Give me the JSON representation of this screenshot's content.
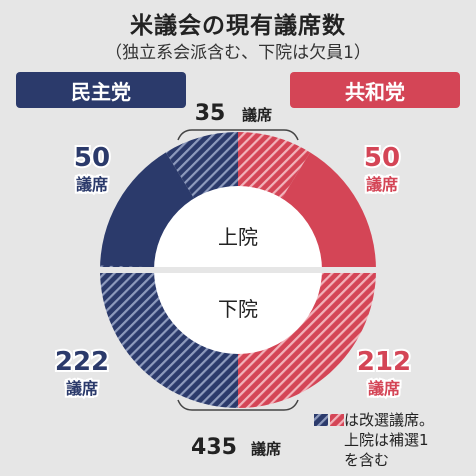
{
  "title": "米議会の現有議席数",
  "subtitle": "（独立系会派含む、下院は欠員1）",
  "parties": {
    "dem": "民主党",
    "rep": "共和党"
  },
  "colors": {
    "dem": "#2b3a6b",
    "rep": "#d44556",
    "background": "#e6e6e6"
  },
  "chart_data": {
    "type": "pie",
    "charts": [
      {
        "name": "上院",
        "total": 100,
        "dem": 50,
        "rep": 50,
        "up_for_election": 35,
        "dem_label": "50",
        "rep_label": "50",
        "unit": "議席",
        "total_label": "35",
        "total_unit": "議席"
      },
      {
        "name": "下院",
        "total": 435,
        "dem": 222,
        "rep": 212,
        "up_for_election": 435,
        "dem_label": "222",
        "rep_label": "212",
        "unit": "議席",
        "total_label": "435",
        "total_unit": "議席"
      }
    ]
  },
  "legend": {
    "line1": "は改選議席。",
    "line2": "上院は補選1",
    "line3": "を含む"
  }
}
